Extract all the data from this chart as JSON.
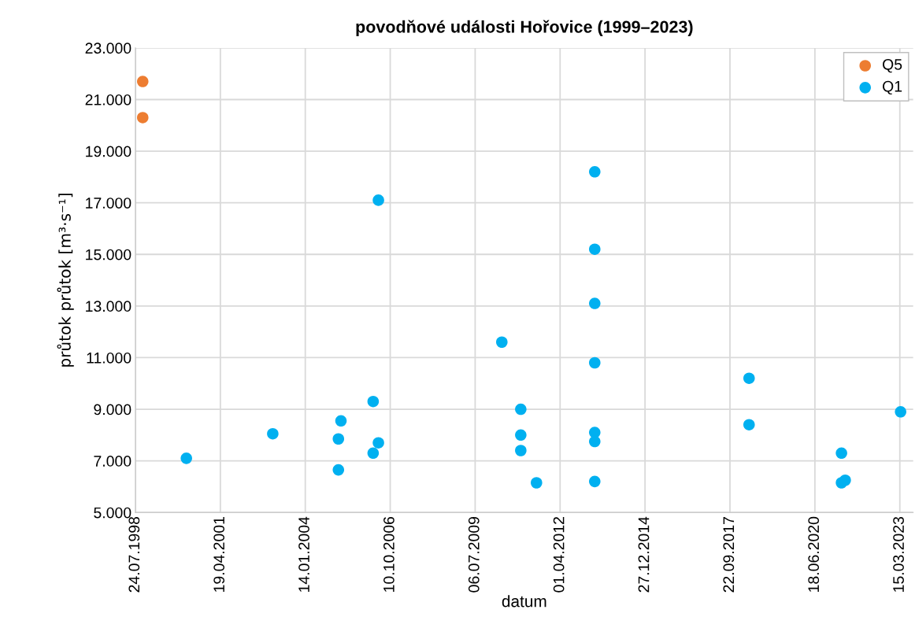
{
  "chart_data": {
    "type": "scatter",
    "title": "povodňové události Hořovice (1999–2023)",
    "xlabel": "datum",
    "ylabel": "průtok průtok [m³·s⁻¹]",
    "series": [
      {
        "name": "Q5",
        "color": "#ed7d31",
        "x": [
          "1998-10-18",
          "1998-10-18"
        ],
        "values": [
          21700,
          20300
        ]
      },
      {
        "name": "Q1",
        "color": "#00b0f0",
        "x": [
          "2000-03-15",
          "2002-12-27",
          "2005-02-07",
          "2005-02-07",
          "2005-03-09",
          "2006-03-23",
          "2006-03-23",
          "2006-05-24",
          "2006-05-24",
          "2010-05-16",
          "2010-12-25",
          "2010-12-25",
          "2010-12-25",
          "2011-06-28",
          "2013-05-14",
          "2013-05-14",
          "2013-05-14",
          "2013-05-14",
          "2013-05-14",
          "2013-05-14",
          "2013-05-14",
          "2018-05-05",
          "2018-05-05",
          "2021-04-27",
          "2021-04-27",
          "2021-06-10",
          "2023-03-24"
        ],
        "values": [
          7100,
          8050,
          7850,
          6650,
          8550,
          9300,
          7300,
          17100,
          7700,
          11600,
          9000,
          8000,
          7400,
          6150,
          18200,
          15200,
          13100,
          10800,
          8100,
          7750,
          6200,
          10200,
          8400,
          7300,
          6150,
          6250,
          8900
        ]
      }
    ],
    "xlim": [
      "1998-07-24",
      "2023-08-19"
    ],
    "xticks": [
      {
        "value": "1998-07-24",
        "label": "24.07.1998"
      },
      {
        "value": "2001-04-19",
        "label": "19.04.2001"
      },
      {
        "value": "2004-01-14",
        "label": "14.01.2004"
      },
      {
        "value": "2006-10-10",
        "label": "10.10.2006"
      },
      {
        "value": "2009-07-06",
        "label": "06.07.2009"
      },
      {
        "value": "2012-04-01",
        "label": "01.04.2012"
      },
      {
        "value": "2014-12-27",
        "label": "27.12.2014"
      },
      {
        "value": "2017-09-22",
        "label": "22.09.2017"
      },
      {
        "value": "2020-06-18",
        "label": "18.06.2020"
      },
      {
        "value": "2023-03-15",
        "label": "15.03.2023"
      }
    ],
    "ylim": [
      5000,
      23000
    ],
    "yticks": [
      {
        "value": 5000,
        "label": "5.000"
      },
      {
        "value": 7000,
        "label": "7.000"
      },
      {
        "value": 9000,
        "label": "9.000"
      },
      {
        "value": 11000,
        "label": "11.000"
      },
      {
        "value": 13000,
        "label": "13.000"
      },
      {
        "value": 15000,
        "label": "15.000"
      },
      {
        "value": 17000,
        "label": "17.000"
      },
      {
        "value": 19000,
        "label": "19.000"
      },
      {
        "value": 21000,
        "label": "21.000"
      },
      {
        "value": 23000,
        "label": "23.000"
      }
    ],
    "grid": true,
    "legend": "top right",
    "marker": "circle"
  }
}
